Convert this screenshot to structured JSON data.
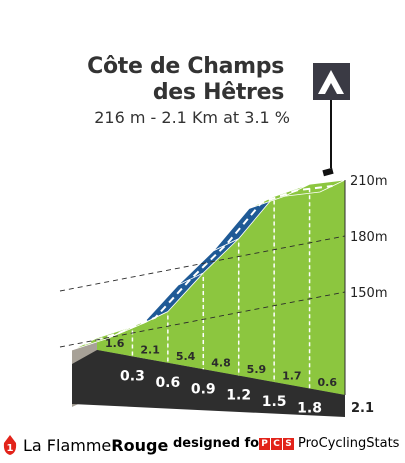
{
  "header": {
    "title_line1": "Côte de Champs",
    "title_line2": "des Hêtres",
    "subtitle": "216 m - 2.1 Km at 3.1 %"
  },
  "footer": {
    "brand_part1": "La Flamme",
    "brand_part2": "Rouge",
    "designed_for": "designed for",
    "pcs_letters": [
      "P",
      "C",
      "S"
    ],
    "pcs_name": "ProCyclingStats"
  },
  "colors": {
    "gentle": "#8cc63f",
    "steep": "#1f5a96",
    "base": "#2e2e2e",
    "side": "#a7a197",
    "accent": "#e2231a"
  },
  "chart_data": {
    "type": "area",
    "title": "Côte de Champs des Hêtres",
    "subtitle": "216 m - 2.1 Km at 3.1 %",
    "distance_km": 2.1,
    "km_markers": [
      "0.3",
      "0.6",
      "0.9",
      "1.2",
      "1.5",
      "1.8",
      "2.1"
    ],
    "segment_gradients": [
      "1.6",
      "2.1",
      "5.4",
      "4.8",
      "5.9",
      "1.7",
      "0.6"
    ],
    "segment_colors": [
      "gentle",
      "gentle",
      "steep",
      "steep",
      "steep",
      "gentle",
      "gentle"
    ],
    "elevation_labels": [
      "150m",
      "180m",
      "210m"
    ],
    "ylim": [
      150,
      210
    ],
    "grid": true,
    "summit_icon": "mountain-summit-icon"
  }
}
